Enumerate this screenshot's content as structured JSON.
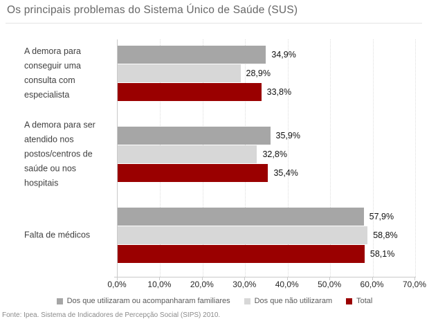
{
  "title": "Os principais problemas do Sistema Único de Saúde (SUS)",
  "source_note": "Fonte: Ipea. Sistema de Indicadores de Percepção Social (SIPS) 2010.",
  "colors": {
    "series_used": "#a6a6a6",
    "series_not_used": "#d7d7d7",
    "series_total": "#9a0000",
    "title_text": "#666666",
    "axis_line": "#c9c9c9",
    "gridline": "#dcdcdc"
  },
  "chart_data": {
    "type": "bar",
    "orientation": "horizontal",
    "title": "Os principais problemas do Sistema Único de Saúde (SUS)",
    "categories": [
      "A demora para conseguir uma consulta com especialista",
      "A demora para ser atendido nos postos/centros de saúde ou nos hospitais",
      "Falta de médicos"
    ],
    "series": [
      {
        "name": "Dos que utilizaram ou acompanharam familiares",
        "color": "#a6a6a6",
        "values": [
          34.9,
          35.9,
          57.9
        ],
        "labels": [
          "34,9%",
          "35,9%",
          "57,9%"
        ]
      },
      {
        "name": "Dos que não utilizaram",
        "color": "#d7d7d7",
        "values": [
          28.9,
          32.8,
          58.8
        ],
        "labels": [
          "28,9%",
          "32,8%",
          "58,8%"
        ]
      },
      {
        "name": "Total",
        "color": "#9a0000",
        "values": [
          33.8,
          35.4,
          58.1
        ],
        "labels": [
          "33,8%",
          "35,4%",
          "58,1%"
        ]
      }
    ],
    "xlim": [
      0,
      70
    ],
    "x_tick_values": [
      0,
      10,
      20,
      30,
      40,
      50,
      60,
      70
    ],
    "x_tick_labels": [
      "0,0%",
      "10,0%",
      "20,0%",
      "30,0%",
      "40,0%",
      "50,0%",
      "60,0%",
      "70,0%"
    ],
    "grid": "vertical-dotted",
    "legend_position": "bottom",
    "value_labels": "outside-end"
  }
}
